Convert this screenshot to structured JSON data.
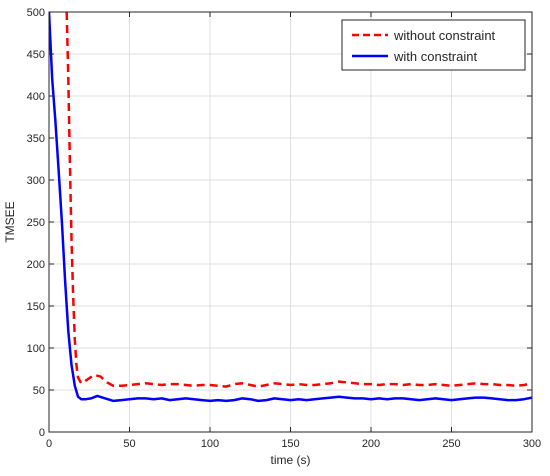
{
  "chart_data": {
    "type": "line",
    "title": "",
    "xlabel": "time (s)",
    "ylabel": "TMSEE",
    "xlim": [
      0,
      300
    ],
    "ylim": [
      0,
      500
    ],
    "xticks": [
      0,
      50,
      100,
      150,
      200,
      250,
      300
    ],
    "yticks": [
      0,
      50,
      100,
      150,
      200,
      250,
      300,
      350,
      400,
      450,
      500
    ],
    "grid": true,
    "legend_position": "top-right",
    "series": [
      {
        "name": "without constraint",
        "color": "#ff0000",
        "style": "dashed",
        "x": [
          11,
          12,
          13,
          14,
          15,
          16,
          17,
          18,
          20,
          22,
          25,
          28,
          32,
          36,
          40,
          45,
          50,
          55,
          60,
          65,
          70,
          75,
          80,
          85,
          90,
          95,
          100,
          105,
          110,
          115,
          120,
          125,
          130,
          135,
          140,
          145,
          150,
          155,
          160,
          165,
          170,
          175,
          180,
          185,
          190,
          195,
          200,
          205,
          210,
          215,
          220,
          225,
          230,
          235,
          240,
          245,
          250,
          255,
          260,
          265,
          270,
          275,
          280,
          285,
          290,
          295,
          300
        ],
        "y": [
          500,
          420,
          320,
          230,
          160,
          110,
          80,
          65,
          58,
          60,
          64,
          68,
          66,
          59,
          55,
          55,
          56,
          57,
          58,
          57,
          56,
          57,
          57,
          56,
          55,
          56,
          56,
          55,
          54,
          57,
          58,
          56,
          54,
          56,
          58,
          57,
          56,
          57,
          56,
          56,
          57,
          58,
          60,
          59,
          58,
          57,
          57,
          56,
          57,
          57,
          56,
          57,
          56,
          56,
          57,
          56,
          55,
          56,
          57,
          58,
          57,
          57,
          56,
          56,
          55,
          56,
          58
        ]
      },
      {
        "name": "with constraint",
        "color": "#0000ff",
        "style": "solid",
        "x": [
          0,
          2,
          4,
          6,
          8,
          10,
          12,
          14,
          16,
          18,
          20,
          23,
          26,
          30,
          35,
          40,
          45,
          50,
          55,
          60,
          65,
          70,
          75,
          80,
          85,
          90,
          95,
          100,
          105,
          110,
          115,
          120,
          125,
          130,
          135,
          140,
          145,
          150,
          155,
          160,
          165,
          170,
          175,
          180,
          185,
          190,
          195,
          200,
          205,
          210,
          215,
          220,
          225,
          230,
          235,
          240,
          245,
          250,
          255,
          260,
          265,
          270,
          275,
          280,
          285,
          290,
          295,
          300
        ],
        "y": [
          500,
          420,
          370,
          310,
          250,
          180,
          120,
          80,
          55,
          42,
          39,
          39,
          40,
          43,
          40,
          37,
          38,
          39,
          40,
          40,
          39,
          40,
          38,
          39,
          40,
          39,
          38,
          37,
          38,
          37,
          38,
          40,
          39,
          37,
          38,
          40,
          39,
          38,
          39,
          38,
          39,
          40,
          41,
          42,
          41,
          40,
          40,
          39,
          40,
          39,
          40,
          40,
          39,
          38,
          39,
          40,
          39,
          38,
          39,
          40,
          41,
          41,
          40,
          39,
          38,
          38,
          39,
          41
        ]
      }
    ]
  }
}
